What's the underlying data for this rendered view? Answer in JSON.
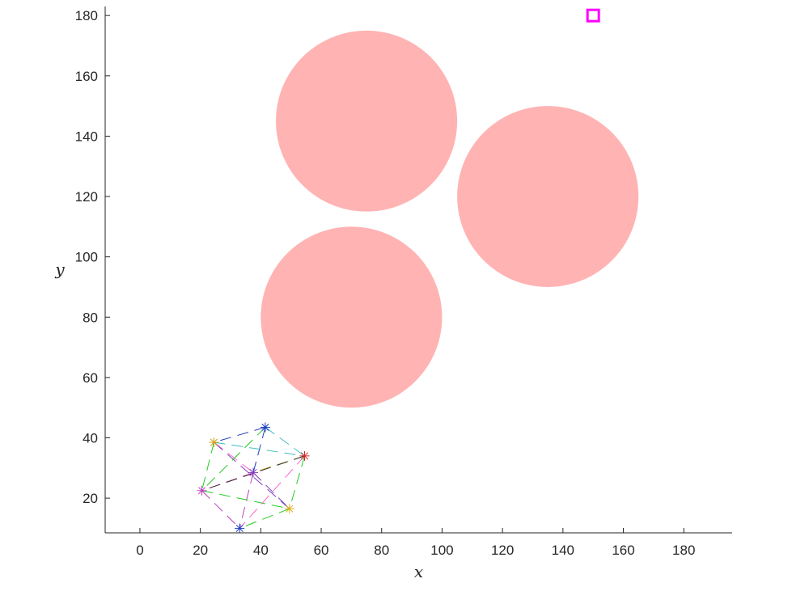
{
  "chart_data": {
    "type": "scatter",
    "title": "",
    "xlabel": "x",
    "ylabel": "y",
    "xlim": [
      -11.5,
      196
    ],
    "ylim": [
      8.5,
      183
    ],
    "xticks": [
      0,
      20,
      40,
      60,
      80,
      100,
      120,
      140,
      160,
      180
    ],
    "yticks": [
      20,
      40,
      60,
      80,
      100,
      120,
      140,
      160,
      180
    ],
    "grid": false,
    "legend": "none",
    "obstacles": [
      {
        "cx": 75,
        "cy": 145,
        "r": 30,
        "color": "#ffb3b3"
      },
      {
        "cx": 135,
        "cy": 120,
        "r": 30,
        "color": "#ffb3b3"
      },
      {
        "cx": 70,
        "cy": 80,
        "r": 30,
        "color": "#ffb3b3"
      }
    ],
    "goal": {
      "x": 150,
      "y": 180,
      "marker": "square",
      "color": "#ff00ff"
    },
    "agents": [
      {
        "x": 41.5,
        "y": 43.5,
        "color": "#1f3fbf"
      },
      {
        "x": 24.5,
        "y": 38.5,
        "color": "#d4a017"
      },
      {
        "x": 54.5,
        "y": 34,
        "color": "#d62728"
      },
      {
        "x": 37.5,
        "y": 28.5,
        "color": "#7f3fbf"
      },
      {
        "x": 20.5,
        "y": 22.5,
        "color": "#bf3fbf"
      },
      {
        "x": 49.5,
        "y": 16.5,
        "color": "#e0b020"
      },
      {
        "x": 33,
        "y": 10,
        "color": "#1f3fbf"
      }
    ],
    "links": [
      {
        "from": 0,
        "to": 1,
        "color": "#1f3fbf"
      },
      {
        "from": 0,
        "to": 2,
        "color": "#3fbfbf"
      },
      {
        "from": 0,
        "to": 3,
        "color": "#1f3fbf"
      },
      {
        "from": 1,
        "to": 2,
        "color": "#3fbfbf"
      },
      {
        "from": 1,
        "to": 3,
        "color": "#ff66cc"
      },
      {
        "from": 1,
        "to": 4,
        "color": "#22cc22"
      },
      {
        "from": 2,
        "to": 3,
        "color": "#d4a017"
      },
      {
        "from": 2,
        "to": 5,
        "color": "#22cc22"
      },
      {
        "from": 3,
        "to": 4,
        "color": "#ff66cc"
      },
      {
        "from": 3,
        "to": 5,
        "color": "#7f3fbf"
      },
      {
        "from": 3,
        "to": 6,
        "color": "#bf3fbf"
      },
      {
        "from": 4,
        "to": 5,
        "color": "#22cc22"
      },
      {
        "from": 4,
        "to": 6,
        "color": "#bf3fbf"
      },
      {
        "from": 5,
        "to": 6,
        "color": "#22cc22"
      },
      {
        "from": 1,
        "to": 5,
        "color": "#7f3fbf"
      },
      {
        "from": 2,
        "to": 4,
        "color": "#333333"
      },
      {
        "from": 0,
        "to": 4,
        "color": "#22cc22"
      },
      {
        "from": 2,
        "to": 6,
        "color": "#ff66cc"
      }
    ]
  }
}
